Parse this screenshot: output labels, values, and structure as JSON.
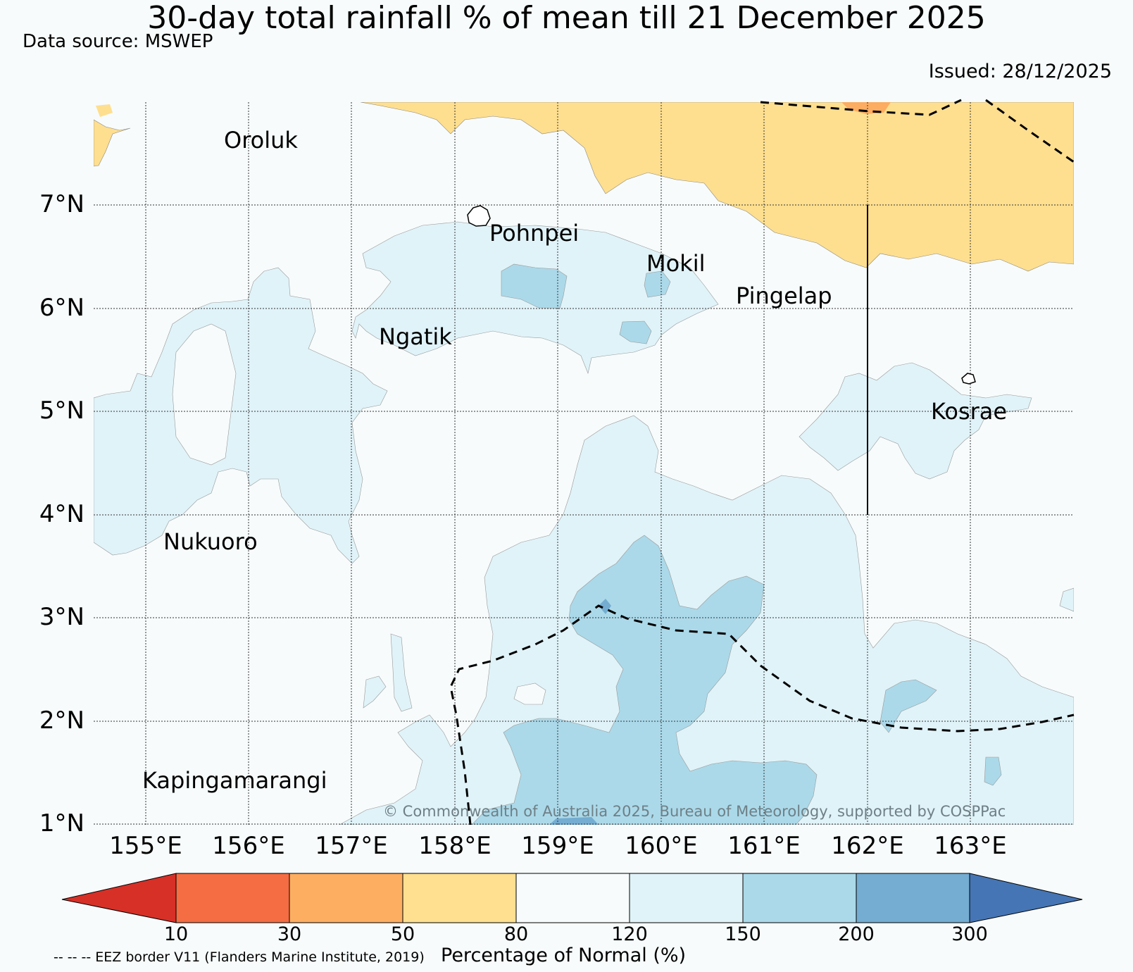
{
  "header": {
    "title": "30-day total rainfall % of mean till 21 December 2025",
    "source": "Data source: MSWEP",
    "issued": "Issued: 28/12/2025"
  },
  "map": {
    "lat_labels": [
      "7°N",
      "6°N",
      "5°N",
      "4°N",
      "3°N",
      "2°N",
      "1°N"
    ],
    "lon_labels": [
      "155°E",
      "156°E",
      "157°E",
      "158°E",
      "159°E",
      "160°E",
      "161°E",
      "162°E",
      "163°E"
    ],
    "places": {
      "oroluk": "Oroluk",
      "pohnpei": "Pohnpei",
      "mokil": "Mokil",
      "pingelap": "Pingelap",
      "ngatik": "Ngatik",
      "kosrae": "Kosrae",
      "nukuoro": "Nukuoro",
      "kapingamarangi": "Kapingamarangi"
    },
    "copyright": "© Commonwealth of Australia 2025, Bureau of Meteorology, supported by COSPPac",
    "colors": {
      "below_80": "#fedf8f",
      "below_50": "#fcad61",
      "normal": "#f7fbfc",
      "above_120": "#e0f3f8",
      "above_150": "#abd9e9",
      "above_200": "#74add1"
    }
  },
  "colorbar": {
    "labels": [
      "10",
      "30",
      "50",
      "80",
      "120",
      "150",
      "200",
      "300"
    ],
    "colors": [
      "#d73027",
      "#f46d43",
      "#fdae61",
      "#fee090",
      "#f7fbfc",
      "#e0f3f8",
      "#abd9e9",
      "#74add1",
      "#4575b4"
    ],
    "title": "Percentage of Normal (%)",
    "eez_note": "-- -- -- EEZ border V11 (Flanders Marine Institute, 2019)"
  }
}
